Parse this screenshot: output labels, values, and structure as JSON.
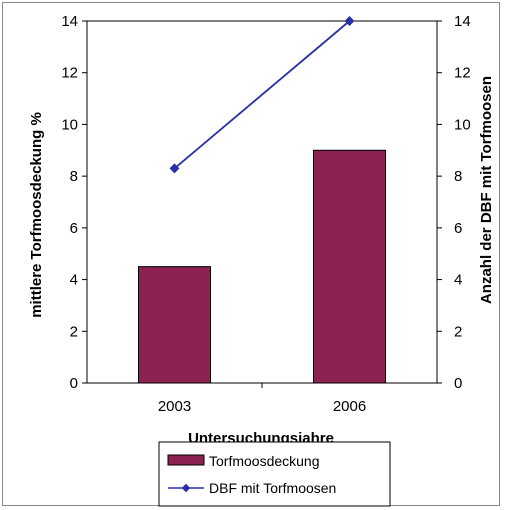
{
  "chart_data": {
    "type": "bar",
    "categories": [
      "2003",
      "2006"
    ],
    "series": [
      {
        "name": "Torfmoosdeckung",
        "type": "bar",
        "axis": "left",
        "values": [
          4.5,
          9.0
        ],
        "color": "#8b2252"
      },
      {
        "name": "DBF mit Torfmoosen",
        "type": "line",
        "axis": "right",
        "values": [
          8.3,
          14.0
        ],
        "color": "#2a2fa8"
      }
    ],
    "xlabel": "Untersuchungsjahre",
    "ylabel": "mittlere Torfmoosdeckung %",
    "y2label": "Anzahl der DBF mit Torfmoosen",
    "ylim": [
      0,
      14
    ],
    "y2lim": [
      0,
      14
    ],
    "yticks": [
      "0",
      "2",
      "4",
      "6",
      "8",
      "10",
      "12",
      "14"
    ],
    "y2ticks": [
      "0",
      "2",
      "4",
      "6",
      "8",
      "10",
      "12",
      "14"
    ],
    "grid": false,
    "legend_position": "bottom"
  }
}
